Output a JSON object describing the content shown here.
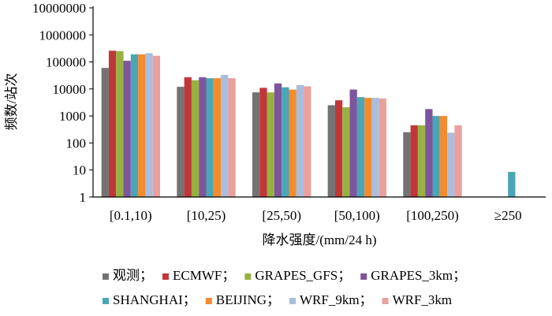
{
  "chart_data": {
    "type": "bar",
    "yscale": "log",
    "ylim": [
      1,
      10000000
    ],
    "yticks": [
      "1",
      "10",
      "100",
      "1000",
      "10000",
      "100000",
      "1000000",
      "10000000"
    ],
    "ytick_values": [
      1,
      10,
      100,
      1000,
      10000,
      100000,
      1000000,
      10000000
    ],
    "xlabel": "降水强度/(mm/24 h)",
    "ylabel": "频数/站次",
    "categories": [
      "[0.1,10)",
      "[10,25)",
      "[25,50)",
      "[50,100)",
      "[100,250)",
      "≥250"
    ],
    "legend_position": "bottom",
    "series": [
      {
        "name": "观测；",
        "color": "#737373",
        "values": [
          60000,
          12000,
          7500,
          2500,
          250,
          null
        ]
      },
      {
        "name": "ECMWF；",
        "color": "#c0373a",
        "values": [
          260000,
          27000,
          11000,
          3800,
          450,
          null
        ]
      },
      {
        "name": "GRAPES_GFS；",
        "color": "#97b241",
        "values": [
          250000,
          21000,
          7500,
          2100,
          450,
          null
        ]
      },
      {
        "name": "GRAPES_3km；",
        "color": "#7e559c",
        "values": [
          110000,
          27000,
          16000,
          9500,
          1800,
          null
        ]
      },
      {
        "name": "SHANGHAI；",
        "color": "#4aa6b6",
        "values": [
          190000,
          25000,
          11500,
          5000,
          1000,
          8.5
        ]
      },
      {
        "name": "BEIJING；",
        "color": "#f28c2f",
        "values": [
          190000,
          25000,
          9500,
          4700,
          1000,
          null
        ]
      },
      {
        "name": "WRF_9km；",
        "color": "#a9bedf",
        "values": [
          210000,
          33000,
          14000,
          4700,
          240,
          null
        ]
      },
      {
        "name": "WRF_3km",
        "color": "#eaa09c",
        "values": [
          170000,
          25000,
          12500,
          4400,
          450,
          null
        ]
      }
    ]
  }
}
